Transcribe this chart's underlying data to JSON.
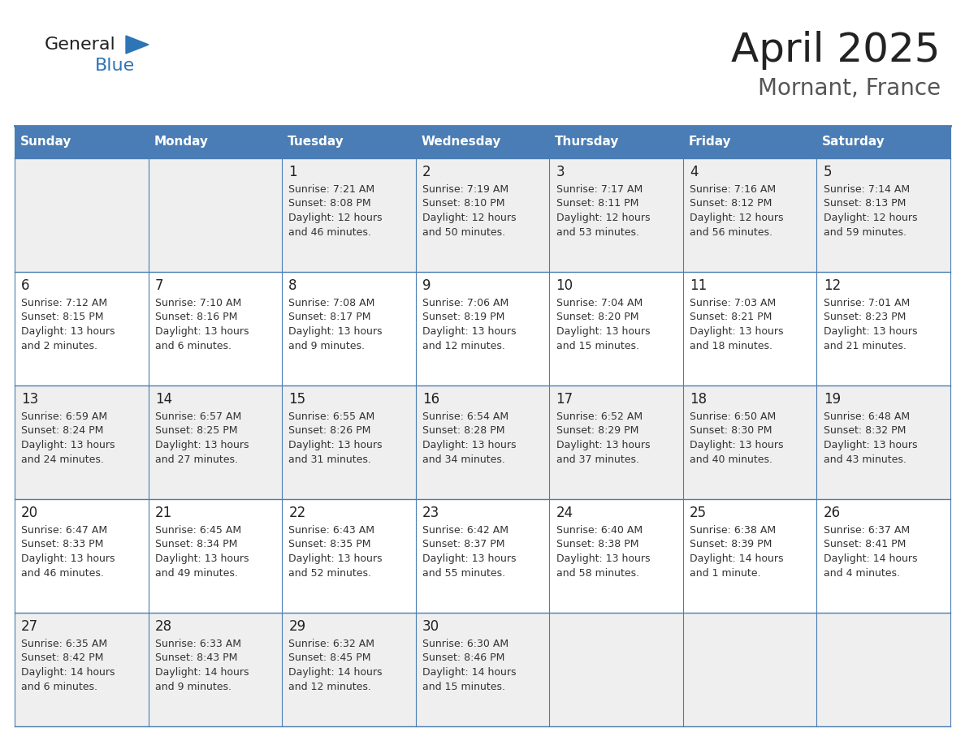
{
  "title": "April 2025",
  "subtitle": "Mornant, France",
  "days_of_week": [
    "Sunday",
    "Monday",
    "Tuesday",
    "Wednesday",
    "Thursday",
    "Friday",
    "Saturday"
  ],
  "header_bg": "#4a7db5",
  "header_text": "#ffffff",
  "row_bg_even": "#efefef",
  "row_bg_odd": "#ffffff",
  "cell_text_color": "#333333",
  "day_num_color": "#222222",
  "border_color": "#4a7db5",
  "title_color": "#222222",
  "subtitle_color": "#555555",
  "logo_general_color": "#222222",
  "logo_blue_color": "#2e75b6",
  "weeks": [
    [
      {
        "day": null,
        "text": ""
      },
      {
        "day": null,
        "text": ""
      },
      {
        "day": 1,
        "sunrise": "Sunrise: 7:21 AM",
        "sunset": "Sunset: 8:08 PM",
        "daylight": "Daylight: 12 hours",
        "extra": "and 46 minutes."
      },
      {
        "day": 2,
        "sunrise": "Sunrise: 7:19 AM",
        "sunset": "Sunset: 8:10 PM",
        "daylight": "Daylight: 12 hours",
        "extra": "and 50 minutes."
      },
      {
        "day": 3,
        "sunrise": "Sunrise: 7:17 AM",
        "sunset": "Sunset: 8:11 PM",
        "daylight": "Daylight: 12 hours",
        "extra": "and 53 minutes."
      },
      {
        "day": 4,
        "sunrise": "Sunrise: 7:16 AM",
        "sunset": "Sunset: 8:12 PM",
        "daylight": "Daylight: 12 hours",
        "extra": "and 56 minutes."
      },
      {
        "day": 5,
        "sunrise": "Sunrise: 7:14 AM",
        "sunset": "Sunset: 8:13 PM",
        "daylight": "Daylight: 12 hours",
        "extra": "and 59 minutes."
      }
    ],
    [
      {
        "day": 6,
        "sunrise": "Sunrise: 7:12 AM",
        "sunset": "Sunset: 8:15 PM",
        "daylight": "Daylight: 13 hours",
        "extra": "and 2 minutes."
      },
      {
        "day": 7,
        "sunrise": "Sunrise: 7:10 AM",
        "sunset": "Sunset: 8:16 PM",
        "daylight": "Daylight: 13 hours",
        "extra": "and 6 minutes."
      },
      {
        "day": 8,
        "sunrise": "Sunrise: 7:08 AM",
        "sunset": "Sunset: 8:17 PM",
        "daylight": "Daylight: 13 hours",
        "extra": "and 9 minutes."
      },
      {
        "day": 9,
        "sunrise": "Sunrise: 7:06 AM",
        "sunset": "Sunset: 8:19 PM",
        "daylight": "Daylight: 13 hours",
        "extra": "and 12 minutes."
      },
      {
        "day": 10,
        "sunrise": "Sunrise: 7:04 AM",
        "sunset": "Sunset: 8:20 PM",
        "daylight": "Daylight: 13 hours",
        "extra": "and 15 minutes."
      },
      {
        "day": 11,
        "sunrise": "Sunrise: 7:03 AM",
        "sunset": "Sunset: 8:21 PM",
        "daylight": "Daylight: 13 hours",
        "extra": "and 18 minutes."
      },
      {
        "day": 12,
        "sunrise": "Sunrise: 7:01 AM",
        "sunset": "Sunset: 8:23 PM",
        "daylight": "Daylight: 13 hours",
        "extra": "and 21 minutes."
      }
    ],
    [
      {
        "day": 13,
        "sunrise": "Sunrise: 6:59 AM",
        "sunset": "Sunset: 8:24 PM",
        "daylight": "Daylight: 13 hours",
        "extra": "and 24 minutes."
      },
      {
        "day": 14,
        "sunrise": "Sunrise: 6:57 AM",
        "sunset": "Sunset: 8:25 PM",
        "daylight": "Daylight: 13 hours",
        "extra": "and 27 minutes."
      },
      {
        "day": 15,
        "sunrise": "Sunrise: 6:55 AM",
        "sunset": "Sunset: 8:26 PM",
        "daylight": "Daylight: 13 hours",
        "extra": "and 31 minutes."
      },
      {
        "day": 16,
        "sunrise": "Sunrise: 6:54 AM",
        "sunset": "Sunset: 8:28 PM",
        "daylight": "Daylight: 13 hours",
        "extra": "and 34 minutes."
      },
      {
        "day": 17,
        "sunrise": "Sunrise: 6:52 AM",
        "sunset": "Sunset: 8:29 PM",
        "daylight": "Daylight: 13 hours",
        "extra": "and 37 minutes."
      },
      {
        "day": 18,
        "sunrise": "Sunrise: 6:50 AM",
        "sunset": "Sunset: 8:30 PM",
        "daylight": "Daylight: 13 hours",
        "extra": "and 40 minutes."
      },
      {
        "day": 19,
        "sunrise": "Sunrise: 6:48 AM",
        "sunset": "Sunset: 8:32 PM",
        "daylight": "Daylight: 13 hours",
        "extra": "and 43 minutes."
      }
    ],
    [
      {
        "day": 20,
        "sunrise": "Sunrise: 6:47 AM",
        "sunset": "Sunset: 8:33 PM",
        "daylight": "Daylight: 13 hours",
        "extra": "and 46 minutes."
      },
      {
        "day": 21,
        "sunrise": "Sunrise: 6:45 AM",
        "sunset": "Sunset: 8:34 PM",
        "daylight": "Daylight: 13 hours",
        "extra": "and 49 minutes."
      },
      {
        "day": 22,
        "sunrise": "Sunrise: 6:43 AM",
        "sunset": "Sunset: 8:35 PM",
        "daylight": "Daylight: 13 hours",
        "extra": "and 52 minutes."
      },
      {
        "day": 23,
        "sunrise": "Sunrise: 6:42 AM",
        "sunset": "Sunset: 8:37 PM",
        "daylight": "Daylight: 13 hours",
        "extra": "and 55 minutes."
      },
      {
        "day": 24,
        "sunrise": "Sunrise: 6:40 AM",
        "sunset": "Sunset: 8:38 PM",
        "daylight": "Daylight: 13 hours",
        "extra": "and 58 minutes."
      },
      {
        "day": 25,
        "sunrise": "Sunrise: 6:38 AM",
        "sunset": "Sunset: 8:39 PM",
        "daylight": "Daylight: 14 hours",
        "extra": "and 1 minute."
      },
      {
        "day": 26,
        "sunrise": "Sunrise: 6:37 AM",
        "sunset": "Sunset: 8:41 PM",
        "daylight": "Daylight: 14 hours",
        "extra": "and 4 minutes."
      }
    ],
    [
      {
        "day": 27,
        "sunrise": "Sunrise: 6:35 AM",
        "sunset": "Sunset: 8:42 PM",
        "daylight": "Daylight: 14 hours",
        "extra": "and 6 minutes."
      },
      {
        "day": 28,
        "sunrise": "Sunrise: 6:33 AM",
        "sunset": "Sunset: 8:43 PM",
        "daylight": "Daylight: 14 hours",
        "extra": "and 9 minutes."
      },
      {
        "day": 29,
        "sunrise": "Sunrise: 6:32 AM",
        "sunset": "Sunset: 8:45 PM",
        "daylight": "Daylight: 14 hours",
        "extra": "and 12 minutes."
      },
      {
        "day": 30,
        "sunrise": "Sunrise: 6:30 AM",
        "sunset": "Sunset: 8:46 PM",
        "daylight": "Daylight: 14 hours",
        "extra": "and 15 minutes."
      },
      {
        "day": null,
        "sunrise": "",
        "sunset": "",
        "daylight": "",
        "extra": ""
      },
      {
        "day": null,
        "sunrise": "",
        "sunset": "",
        "daylight": "",
        "extra": ""
      },
      {
        "day": null,
        "sunrise": "",
        "sunset": "",
        "daylight": "",
        "extra": ""
      }
    ]
  ]
}
